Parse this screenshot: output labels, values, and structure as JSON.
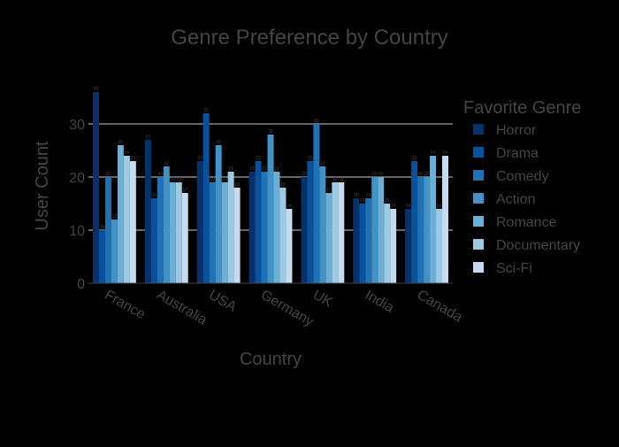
{
  "chart_data": {
    "type": "bar",
    "title": "Genre Preference by Country",
    "xlabel": "Country",
    "ylabel": "User Count",
    "categories": [
      "France",
      "Australia",
      "USA",
      "Germany",
      "UK",
      "India",
      "Canada"
    ],
    "legend": {
      "title": "Favorite Genre",
      "placement": "right"
    },
    "ylim": [
      0,
      38
    ],
    "yticks": [
      0,
      10,
      20,
      30
    ],
    "grid": true,
    "series": [
      {
        "name": "Horror",
        "color": "#08306b",
        "values": [
          36,
          27,
          23,
          21,
          20,
          16,
          14
        ]
      },
      {
        "name": "Drama",
        "color": "#08519c",
        "values": [
          10,
          16,
          32,
          23,
          23,
          15,
          23
        ]
      },
      {
        "name": "Comedy",
        "color": "#2171b5",
        "values": [
          20,
          20,
          19,
          21,
          30,
          16,
          20
        ]
      },
      {
        "name": "Action",
        "color": "#4292c6",
        "values": [
          12,
          22,
          26,
          28,
          22,
          20,
          20
        ]
      },
      {
        "name": "Romance",
        "color": "#6baed6",
        "values": [
          26,
          19,
          19,
          21,
          17,
          20,
          24
        ]
      },
      {
        "name": "Documentary",
        "color": "#9ecae1",
        "values": [
          24,
          19,
          21,
          18,
          19,
          15,
          14
        ]
      },
      {
        "name": "Sci-Fi",
        "color": "#c6dbef",
        "values": [
          23,
          17,
          18,
          14,
          19,
          14,
          24
        ]
      }
    ]
  }
}
